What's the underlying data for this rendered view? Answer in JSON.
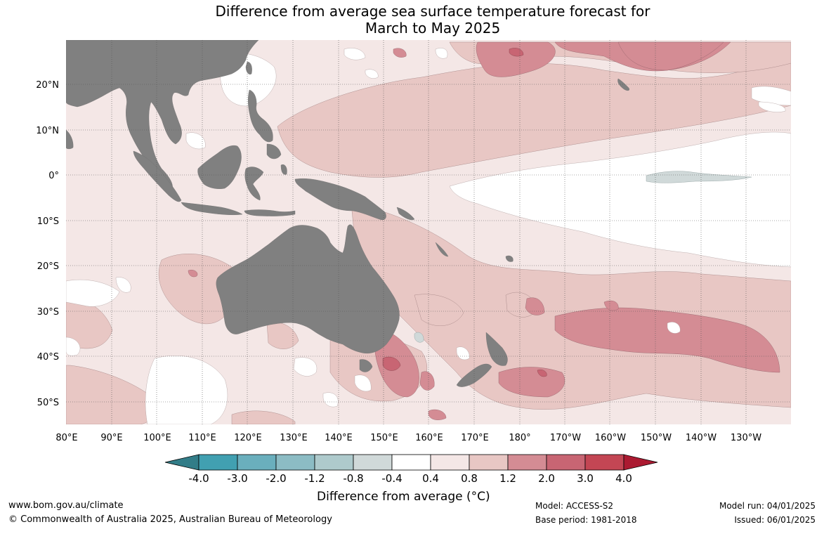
{
  "title_line1": "Difference from average sea surface temperature forecast for",
  "title_line2": "March to May 2025",
  "lat_labels": [
    "20°N",
    "10°N",
    "0°",
    "10°S",
    "20°S",
    "30°S",
    "40°S",
    "50°S"
  ],
  "lon_labels": [
    "80°E",
    "90°E",
    "100°E",
    "110°E",
    "120°E",
    "130°E",
    "140°E",
    "150°E",
    "160°E",
    "170°E",
    "180°",
    "170°W",
    "160°W",
    "150°W",
    "140°W",
    "130°W"
  ],
  "colorbar": {
    "ticks": [
      "-4.0",
      "-3.0",
      "-2.0",
      "-1.2",
      "-0.8",
      "-0.4",
      "0.4",
      "0.8",
      "1.2",
      "2.0",
      "3.0",
      "4.0"
    ],
    "colors": [
      "#41a0b1",
      "#6aafbd",
      "#8cbcc4",
      "#aecacc",
      "#d0d9d9",
      "#ffffff",
      "#f4e7e6",
      "#e8c7c4",
      "#d48c94",
      "#c86573",
      "#c34654"
    ],
    "low_extend_color": "#327d88",
    "high_extend_color": "#ab1a31",
    "label": "Difference from average (°C)"
  },
  "colors": {
    "land": "#808080",
    "ocean_base": "#f4e7e6"
  },
  "footer": {
    "website": "www.bom.gov.au/climate",
    "copyright": "© Commonwealth of Australia 2025, Australian Bureau of Meteorology",
    "model": "Model: ACCESS-S2",
    "base_period": "Base period: 1981-2018",
    "model_run": "Model run: 04/01/2025",
    "issued": "Issued: 06/01/2025"
  }
}
